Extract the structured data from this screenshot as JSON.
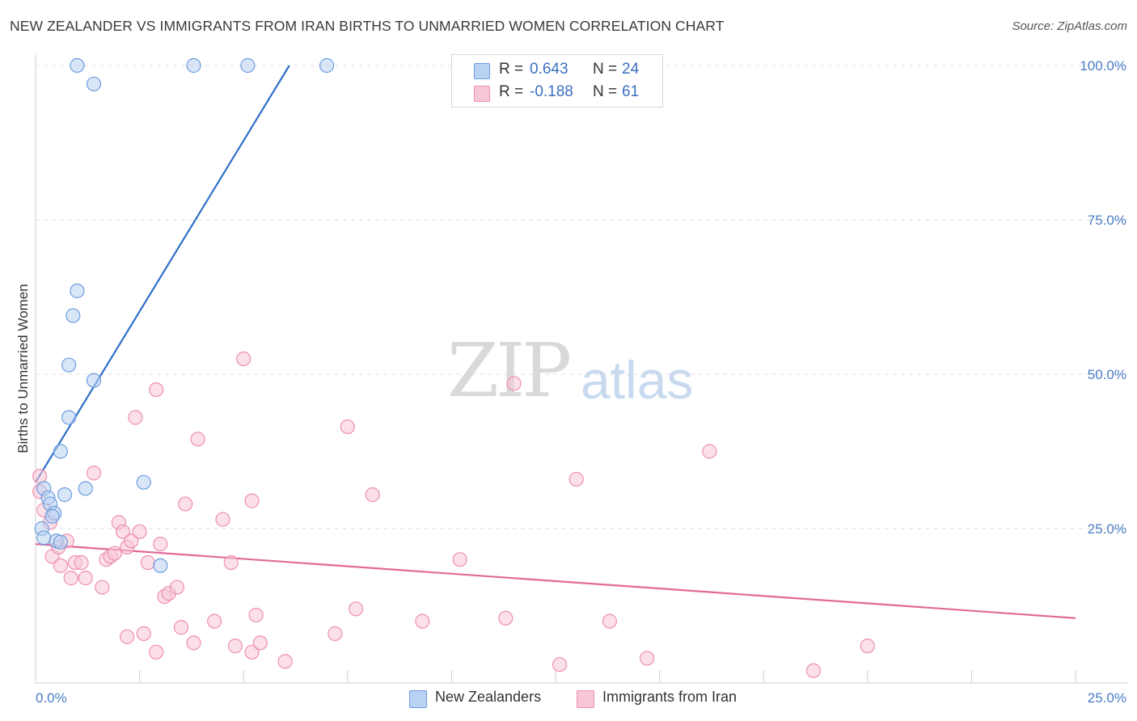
{
  "title": "NEW ZEALANDER VS IMMIGRANTS FROM IRAN BIRTHS TO UNMARRIED WOMEN CORRELATION CHART",
  "source": "Source: ZipAtlas.com",
  "watermark": {
    "zip": "ZIP",
    "atlas": "atlas"
  },
  "legend_top": [
    {
      "r_label": "R =",
      "r_value": "0.643",
      "n_label": "N =",
      "n_value": "24"
    },
    {
      "r_label": "R =",
      "r_value": "-0.188",
      "n_label": "N =",
      "n_value": "61"
    }
  ],
  "legend_bottom": [
    "New Zealanders",
    "Immigrants from Iran"
  ],
  "colors": {
    "blue_fill": "#b9d1f3",
    "blue_stroke": "#6d9de0",
    "blue_line": "#2f6fca",
    "pink_fill": "#f8c7d6",
    "pink_stroke": "#ee8fb0",
    "pink_line": "#e2699a",
    "grid": "#dcdcdc",
    "tick_text": "#4a7cc4"
  },
  "chart_data": {
    "type": "scatter",
    "xlabel": "",
    "ylabel": "Births to Unmarried Women",
    "xlim": [
      0,
      25
    ],
    "ylim": [
      0,
      100
    ],
    "x_tick_labels": [
      "0.0%",
      "25.0%"
    ],
    "y_tick_labels": [
      "25.0%",
      "50.0%",
      "75.0%",
      "100.0%"
    ],
    "y_ticks": [
      25,
      50,
      75,
      100
    ],
    "grid": true,
    "legend_position": "top-center",
    "series": [
      {
        "name": "New Zealanders",
        "color": "#b9d1f3",
        "r": 0.643,
        "n": 24,
        "trend": {
          "x": [
            0.0,
            6.1
          ],
          "y": [
            32.5,
            100.0
          ]
        },
        "points": [
          [
            1.0,
            100.0
          ],
          [
            3.8,
            100.0
          ],
          [
            5.1,
            100.0
          ],
          [
            7.0,
            100.0
          ],
          [
            1.4,
            97.0
          ],
          [
            1.0,
            63.5
          ],
          [
            0.9,
            59.5
          ],
          [
            0.8,
            51.5
          ],
          [
            1.4,
            49.0
          ],
          [
            0.8,
            43.0
          ],
          [
            0.6,
            37.5
          ],
          [
            0.2,
            31.5
          ],
          [
            0.7,
            30.5
          ],
          [
            1.2,
            31.5
          ],
          [
            0.3,
            30.0
          ],
          [
            0.35,
            29.0
          ],
          [
            0.45,
            27.5
          ],
          [
            0.4,
            27.0
          ],
          [
            0.15,
            25.0
          ],
          [
            0.2,
            23.5
          ],
          [
            0.5,
            23.0
          ],
          [
            0.6,
            22.8
          ],
          [
            2.6,
            32.5
          ],
          [
            3.0,
            19.0
          ]
        ]
      },
      {
        "name": "Immigrants from Iran",
        "color": "#f8c7d6",
        "r": -0.188,
        "n": 61,
        "trend": {
          "x": [
            0.0,
            25.0
          ],
          "y": [
            22.5,
            10.5
          ]
        },
        "points": [
          [
            0.1,
            33.5
          ],
          [
            0.1,
            31.0
          ],
          [
            0.2,
            28.0
          ],
          [
            0.35,
            26.0
          ],
          [
            0.4,
            20.5
          ],
          [
            0.55,
            22.0
          ],
          [
            0.6,
            19.0
          ],
          [
            0.75,
            23.0
          ],
          [
            0.85,
            17.0
          ],
          [
            0.95,
            19.5
          ],
          [
            1.1,
            19.5
          ],
          [
            1.2,
            17.0
          ],
          [
            1.4,
            34.0
          ],
          [
            1.6,
            15.5
          ],
          [
            1.7,
            20.0
          ],
          [
            1.8,
            20.5
          ],
          [
            1.9,
            21.0
          ],
          [
            2.0,
            26.0
          ],
          [
            2.1,
            24.5
          ],
          [
            2.2,
            7.5
          ],
          [
            2.2,
            22.0
          ],
          [
            2.3,
            23.0
          ],
          [
            2.4,
            43.0
          ],
          [
            2.5,
            24.5
          ],
          [
            2.6,
            8.0
          ],
          [
            2.7,
            19.5
          ],
          [
            2.9,
            47.5
          ],
          [
            2.9,
            5.0
          ],
          [
            3.0,
            22.5
          ],
          [
            3.1,
            14.0
          ],
          [
            3.2,
            14.5
          ],
          [
            3.4,
            15.5
          ],
          [
            3.5,
            9.0
          ],
          [
            3.6,
            29.0
          ],
          [
            3.8,
            6.5
          ],
          [
            3.9,
            39.5
          ],
          [
            4.3,
            10.0
          ],
          [
            4.5,
            26.5
          ],
          [
            4.7,
            19.5
          ],
          [
            4.8,
            6.0
          ],
          [
            5.0,
            52.5
          ],
          [
            5.2,
            29.5
          ],
          [
            5.2,
            5.0
          ],
          [
            5.3,
            11.0
          ],
          [
            5.4,
            6.5
          ],
          [
            6.0,
            3.5
          ],
          [
            7.2,
            8.0
          ],
          [
            7.5,
            41.5
          ],
          [
            7.7,
            12.0
          ],
          [
            8.1,
            30.5
          ],
          [
            9.3,
            10.0
          ],
          [
            10.2,
            20.0
          ],
          [
            11.3,
            10.5
          ],
          [
            11.5,
            48.5
          ],
          [
            12.6,
            3.0
          ],
          [
            13.0,
            33.0
          ],
          [
            13.8,
            10.0
          ],
          [
            14.7,
            4.0
          ],
          [
            16.2,
            37.5
          ],
          [
            18.7,
            2.0
          ],
          [
            20.0,
            6.0
          ]
        ]
      }
    ]
  }
}
